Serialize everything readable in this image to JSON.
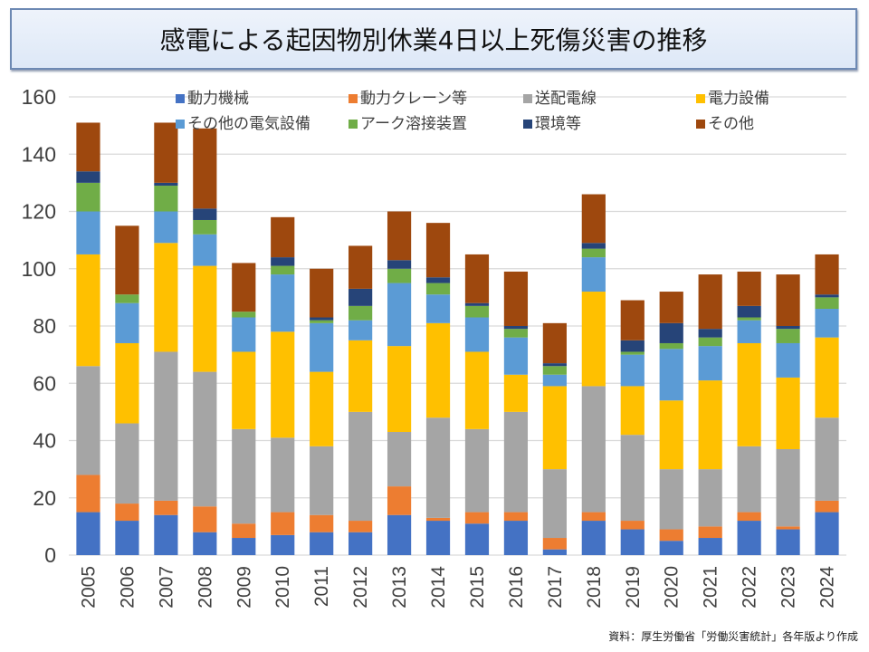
{
  "title": "感電による起因物別休業4日以上死傷災害の推移",
  "source_note": "資料：厚生労働省「労働災害統計」各年版より作成",
  "chart_data": {
    "type": "bar",
    "stacked": true,
    "title": "感電による起因物別休業4日以上死傷災害の推移",
    "xlabel": "",
    "ylabel": "",
    "ylim": [
      0,
      160
    ],
    "yticks": [
      0,
      20,
      40,
      60,
      80,
      100,
      120,
      140,
      160
    ],
    "grid": true,
    "legend_position": "top",
    "categories": [
      "2005",
      "2006",
      "2007",
      "2008",
      "2009",
      "2010",
      "2011",
      "2012",
      "2013",
      "2014",
      "2015",
      "2016",
      "2017",
      "2018",
      "2019",
      "2020",
      "2021",
      "2022",
      "2023",
      "2024"
    ],
    "series": [
      {
        "name": "動力機械",
        "color": "#4472C4",
        "values": [
          15,
          12,
          14,
          8,
          6,
          7,
          8,
          8,
          14,
          12,
          11,
          12,
          2,
          12,
          9,
          5,
          6,
          12,
          9,
          15
        ]
      },
      {
        "name": "動力クレーン等",
        "color": "#ED7D31",
        "values": [
          13,
          6,
          5,
          9,
          5,
          8,
          6,
          4,
          10,
          1,
          4,
          3,
          4,
          3,
          3,
          4,
          4,
          3,
          1,
          4
        ]
      },
      {
        "name": "送配電線",
        "color": "#A5A5A5",
        "values": [
          38,
          28,
          52,
          47,
          33,
          26,
          24,
          38,
          19,
          35,
          29,
          35,
          24,
          44,
          30,
          21,
          20,
          23,
          27,
          29
        ]
      },
      {
        "name": "電力設備",
        "color": "#FFC000",
        "values": [
          39,
          28,
          38,
          37,
          27,
          37,
          26,
          25,
          30,
          33,
          27,
          13,
          29,
          33,
          17,
          24,
          31,
          36,
          25,
          28
        ]
      },
      {
        "name": "その他の電気設備",
        "color": "#5B9BD5",
        "values": [
          15,
          14,
          11,
          11,
          12,
          20,
          17,
          7,
          22,
          10,
          12,
          13,
          4,
          12,
          11,
          18,
          12,
          8,
          12,
          10
        ]
      },
      {
        "name": "アーク溶接装置",
        "color": "#70AD47",
        "values": [
          10,
          3,
          9,
          5,
          2,
          3,
          1,
          5,
          5,
          4,
          4,
          3,
          3,
          3,
          1,
          2,
          3,
          1,
          5,
          4
        ]
      },
      {
        "name": "環境等",
        "color": "#264478",
        "values": [
          4,
          0,
          1,
          4,
          0,
          3,
          1,
          6,
          3,
          2,
          1,
          1,
          1,
          2,
          4,
          7,
          3,
          4,
          1,
          1
        ]
      },
      {
        "name": "その他",
        "color": "#9E480E",
        "values": [
          17,
          24,
          21,
          28,
          17,
          14,
          17,
          15,
          17,
          19,
          17,
          19,
          14,
          17,
          14,
          11,
          19,
          12,
          18,
          14
        ]
      }
    ]
  }
}
